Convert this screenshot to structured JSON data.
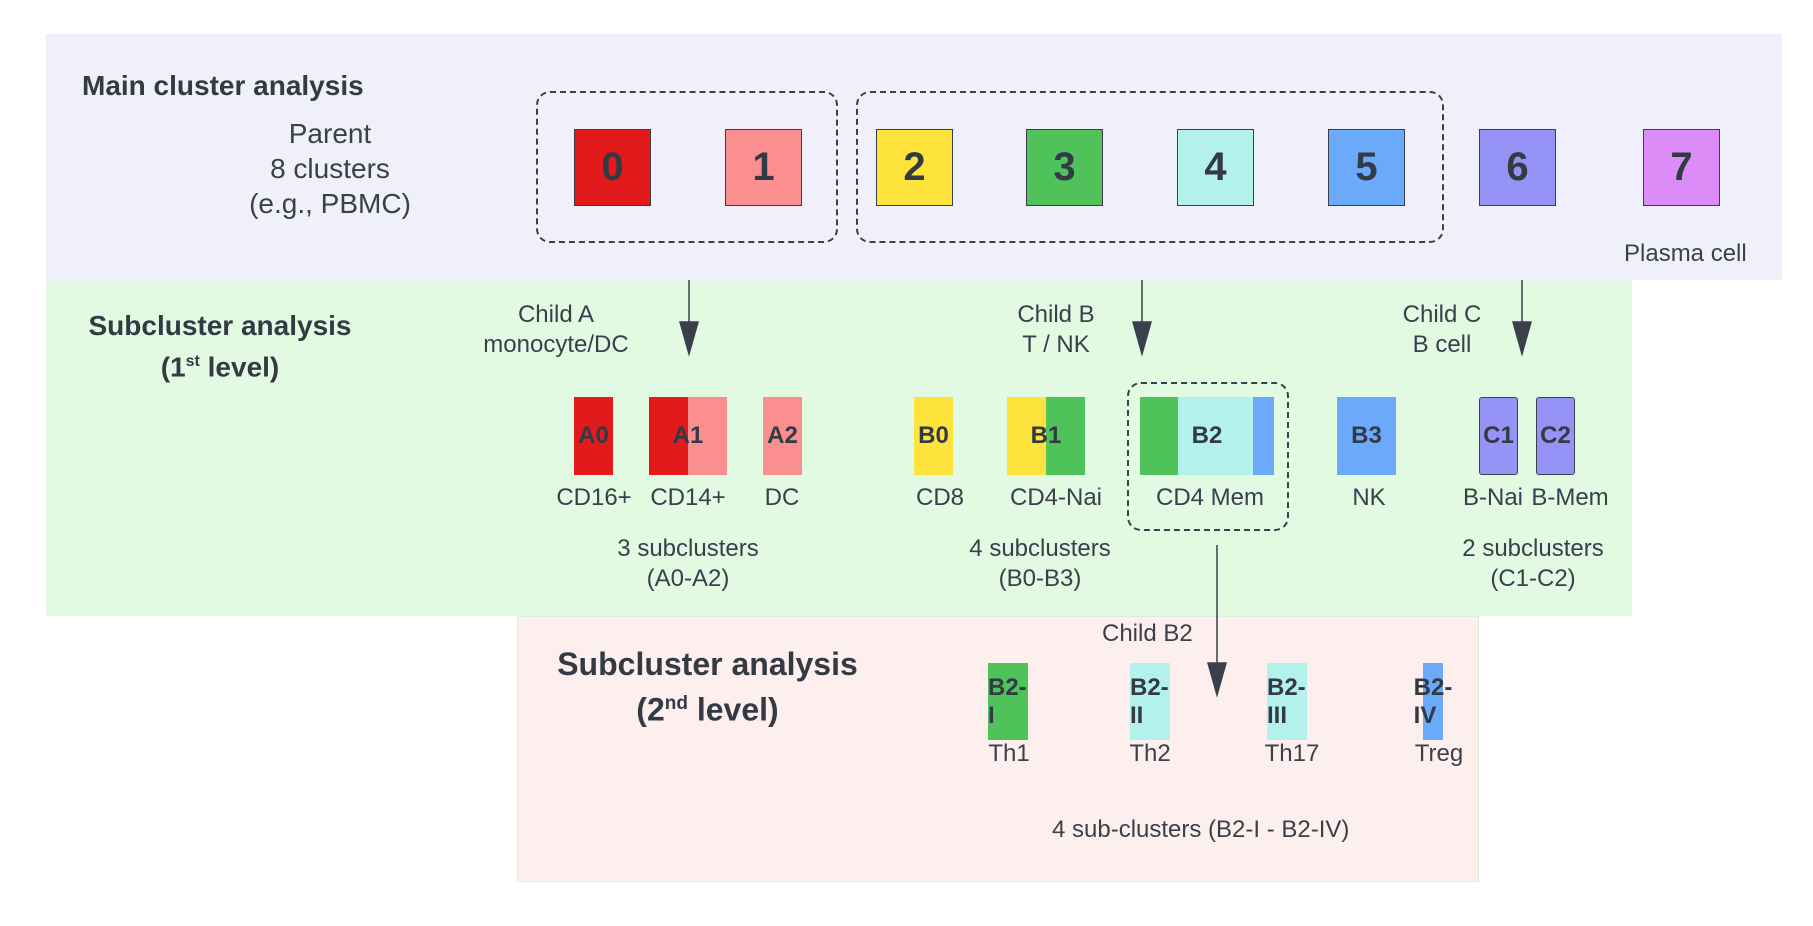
{
  "main": {
    "title": "Main cluster analysis",
    "parent_lines": [
      "Parent",
      "8 clusters",
      "(e.g., PBMC)"
    ],
    "clusters": [
      {
        "label": "0",
        "color": "#e31a1c"
      },
      {
        "label": "1",
        "color": "#fb8f8f"
      },
      {
        "label": "2",
        "color": "#fde33b"
      },
      {
        "label": "3",
        "color": "#4fc25a"
      },
      {
        "label": "4",
        "color": "#b3f2ea"
      },
      {
        "label": "5",
        "color": "#6ba9fb"
      },
      {
        "label": "6",
        "color": "#9693f7"
      },
      {
        "label": "7",
        "color": "#dc8cf7"
      }
    ],
    "plasma_label": "Plasma cell"
  },
  "level1": {
    "title_main": "Subcluster analysis",
    "title_sub_pre": "(1",
    "title_sup": "st",
    "title_sub_post": " level)",
    "childA": [
      "Child A",
      "monocyte/DC"
    ],
    "childB": [
      "Child B",
      "T / NK"
    ],
    "childC": [
      "Child C",
      "B cell"
    ],
    "subclusters": [
      {
        "label": "A0",
        "cell": "CD16+"
      },
      {
        "label": "A1",
        "cell": "CD14+"
      },
      {
        "label": "A2",
        "cell": "DC"
      },
      {
        "label": "B0",
        "cell": "CD8"
      },
      {
        "label": "B1",
        "cell": "CD4-Nai"
      },
      {
        "label": "B2",
        "cell": "CD4 Mem"
      },
      {
        "label": "B3",
        "cell": "NK"
      },
      {
        "label": "C1",
        "cell": "B-Nai"
      },
      {
        "label": "C2",
        "cell": "B-Mem"
      }
    ],
    "summaryA": [
      "3 subclusters",
      "(A0-A2)"
    ],
    "summaryB": [
      "4 subclusters",
      "(B0-B3)"
    ],
    "summaryC": [
      "2 subclusters",
      "(C1-C2)"
    ]
  },
  "level2": {
    "title_main": "Subcluster analysis",
    "title_sub_pre": "(2",
    "title_sup": "nd",
    "title_sub_post": " level)",
    "child": "Child B2",
    "subclusters": [
      {
        "label": "B2-I",
        "cell": "Th1"
      },
      {
        "label": "B2-II",
        "cell": "Th2"
      },
      {
        "label": "B2-III",
        "cell": "Th17"
      },
      {
        "label": "B2-IV",
        "cell": "Treg"
      }
    ],
    "summary": "4 sub-clusters (B2-I - B2-IV)"
  },
  "colors": {
    "main_bg": "#f0f0fd",
    "level1_bg": "#e2f9e2",
    "level2_bg": "#fdefed",
    "ink": "#3a3f4b"
  }
}
